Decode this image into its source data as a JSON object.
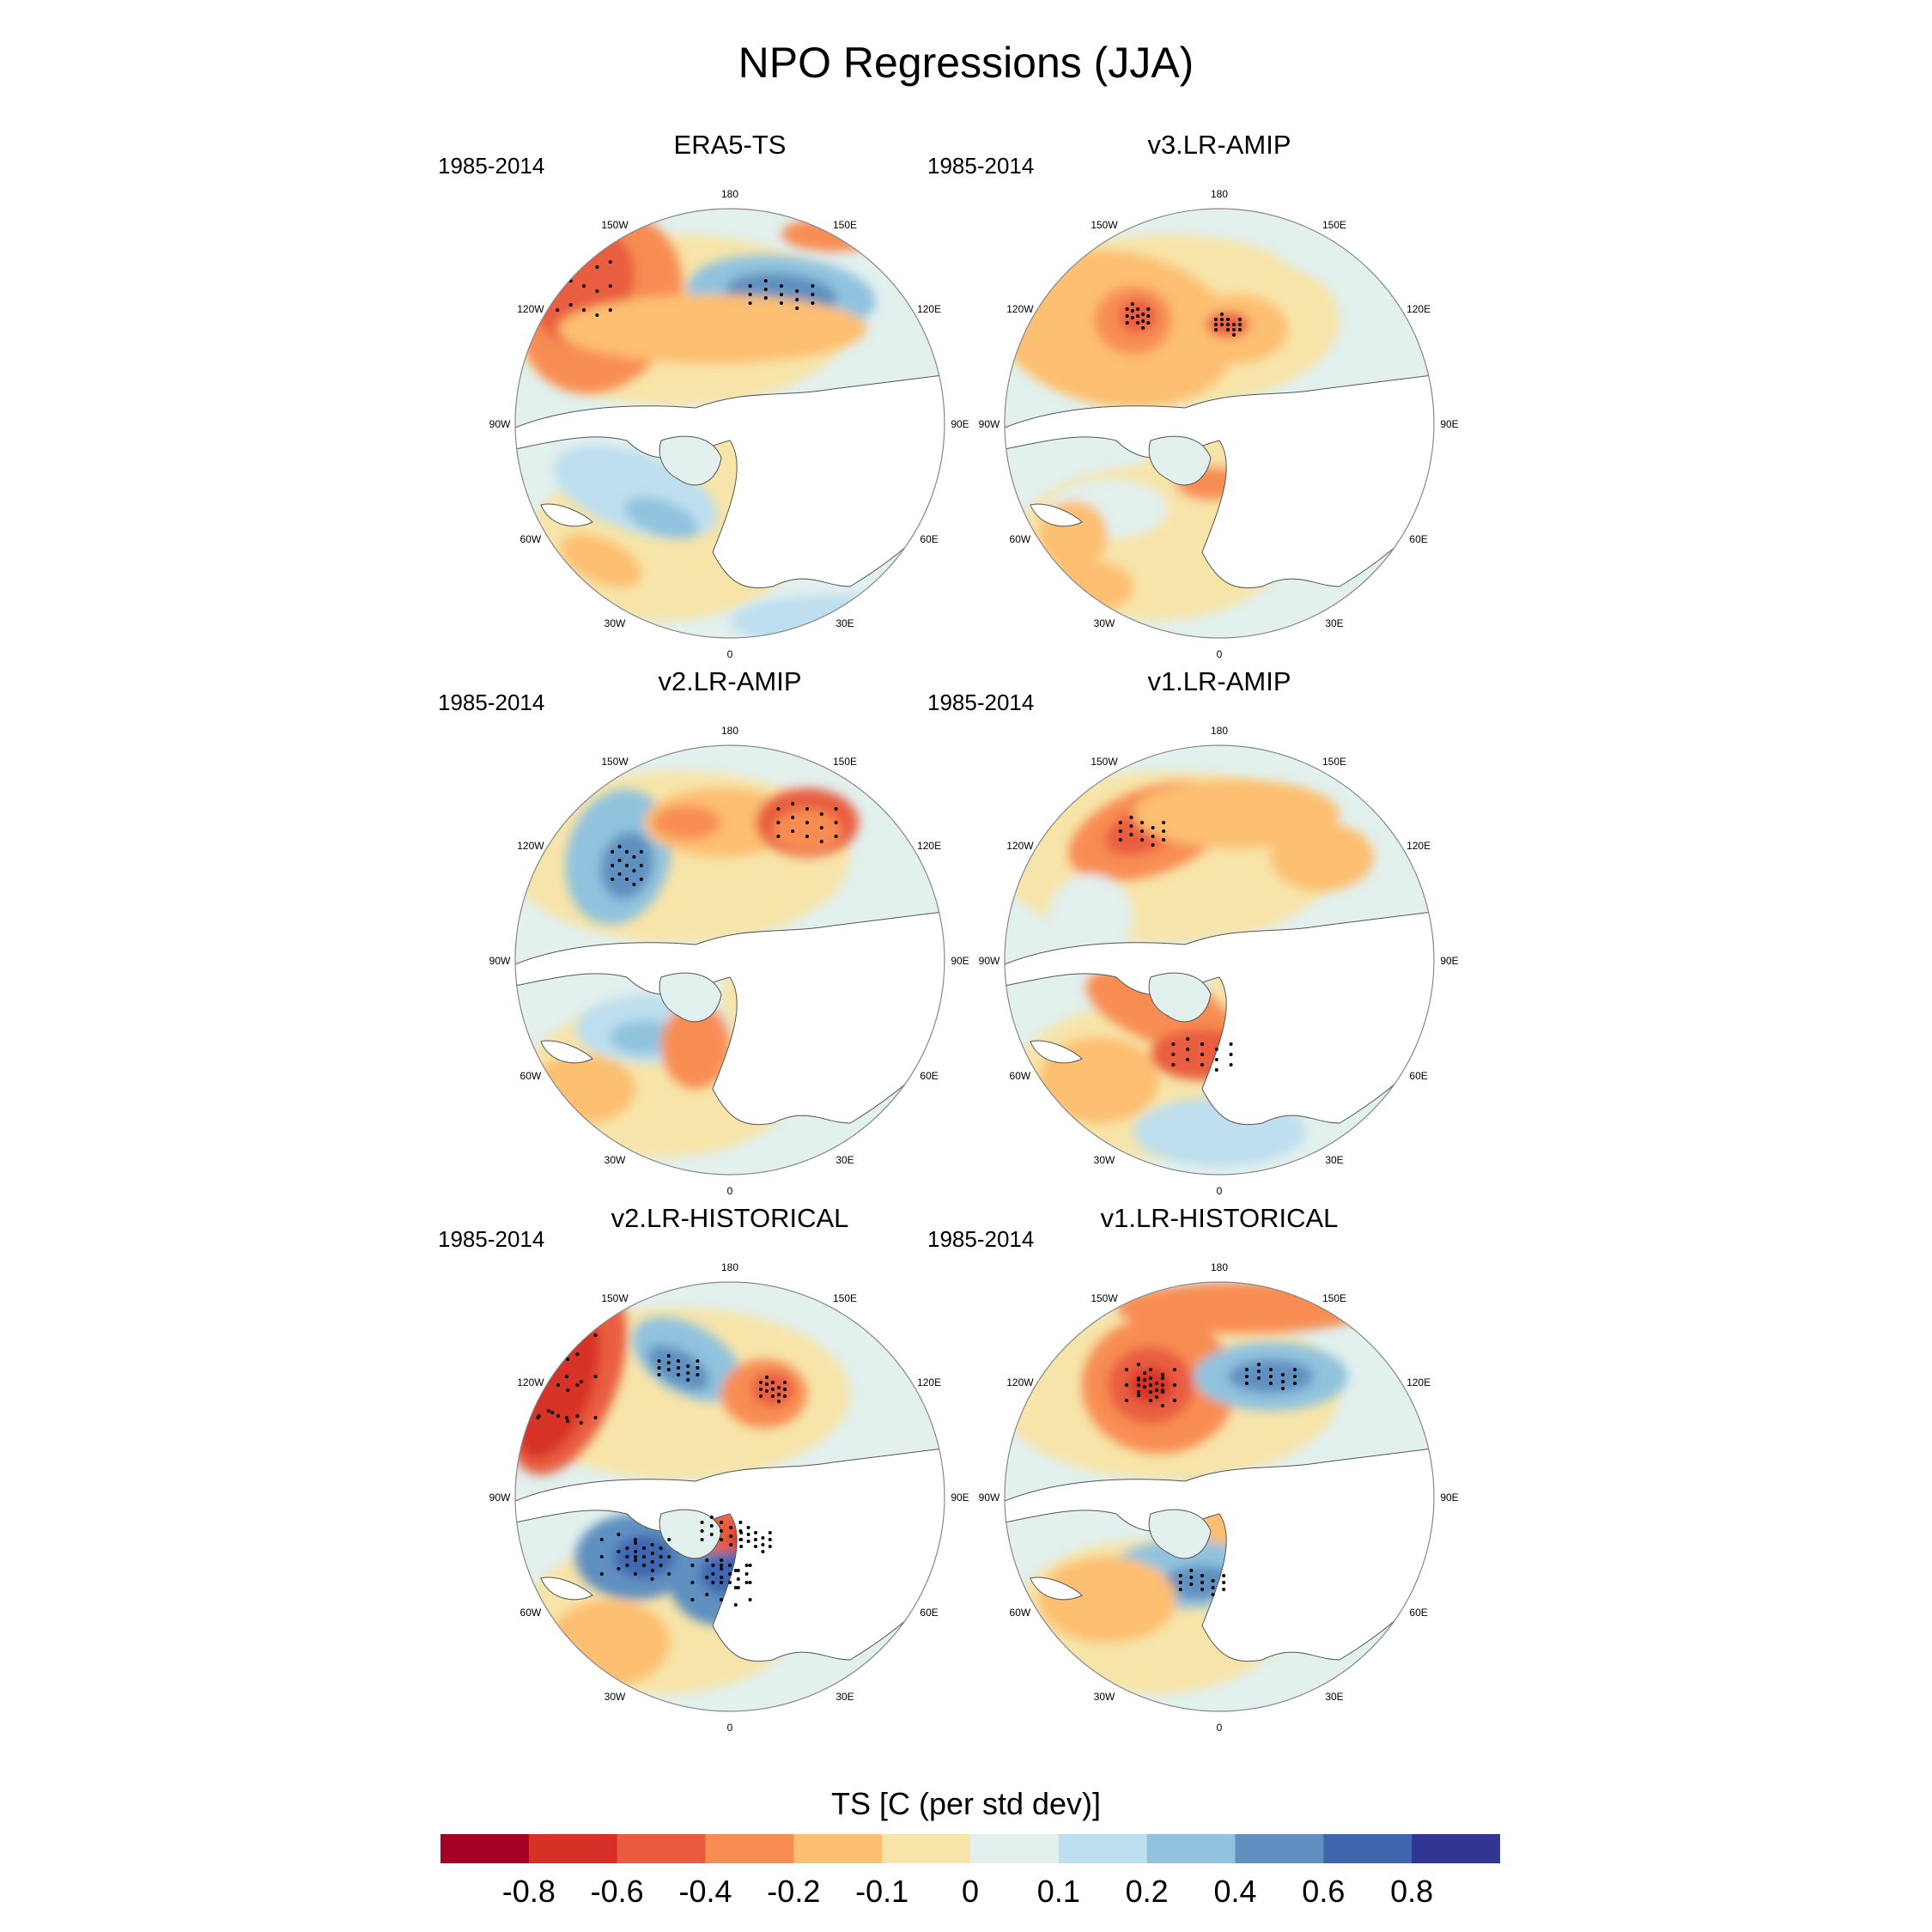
{
  "title": "NPO Regressions (JJA)",
  "panels": [
    {
      "title": "ERA5-TS",
      "period": "1985-2014"
    },
    {
      "title": "v3.LR-AMIP",
      "period": "1985-2014"
    },
    {
      "title": "v2.LR-AMIP",
      "period": "1985-2014"
    },
    {
      "title": "v1.LR-AMIP",
      "period": "1985-2014"
    },
    {
      "title": "v2.LR-HISTORICAL",
      "period": "1985-2014"
    },
    {
      "title": "v1.LR-HISTORICAL",
      "period": "1985-2014"
    }
  ],
  "longitude_labels": [
    "180",
    "150E",
    "120E",
    "90E",
    "60E",
    "30E",
    "0",
    "30W",
    "60W",
    "90W",
    "120W",
    "150W"
  ],
  "colorbar": {
    "title": "TS [C (per std dev)]",
    "labels": [
      "-0.8",
      "-0.6",
      "-0.4",
      "-0.2",
      "-0.1",
      "0",
      "0.1",
      "0.2",
      "0.4",
      "0.6",
      "0.8"
    ],
    "colors": [
      "#a50026",
      "#d73027",
      "#e95d3f",
      "#f88d52",
      "#fdbf71",
      "#f7e4a9",
      "#e2f0ee",
      "#bddfef",
      "#91c3de",
      "#5f90c0",
      "#4066b0",
      "#313695"
    ]
  }
}
